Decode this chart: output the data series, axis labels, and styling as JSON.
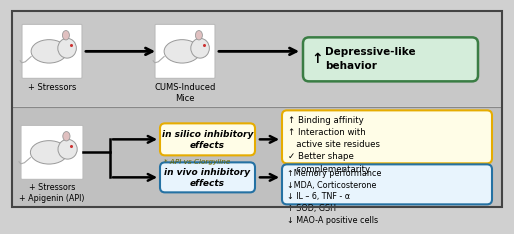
{
  "bg_color": "#d0d0d0",
  "border_color": "#333333",
  "top_row": {
    "label1": "+ Stressors",
    "label2": "CUMS-Induced\nMice",
    "box1_text": "Depressive-like\nbehavior",
    "box1_bg": "#d4edda",
    "box1_border": "#3a7d44"
  },
  "middle_row": {
    "box_text": "in silico inhibitory\neffects",
    "box_bg": "#fffde7",
    "box_border": "#e6ac00",
    "api_label": "* API vs Clorgyline",
    "result_text": "↑ Binding affinity\n↑ Interaction with\n   active site residues\n✓ Better shape\n   complementarity",
    "result_bg": "#fffde7",
    "result_border": "#e6ac00"
  },
  "bottom_row": {
    "label1": "+ Stressors\n+ Apigenin (API)",
    "box_text": "in vivo inhibitory\neffects",
    "box_bg": "#e8f4fd",
    "box_border": "#2471a3",
    "result_text": "↑Memory performance\n↓MDA, Corticosterone\n↓ IL – 6, TNF - α\n↑ SOD, GSH\n↓ MAO-A positive cells",
    "result_bg": "#e8f4fd",
    "result_border": "#2471a3"
  }
}
